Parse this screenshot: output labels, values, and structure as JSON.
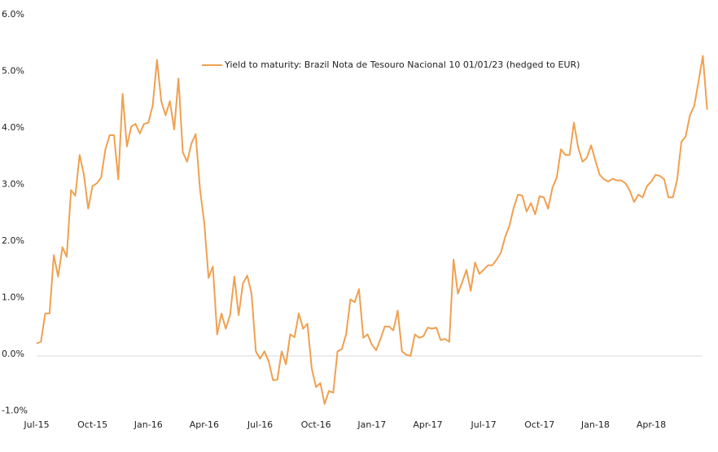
{
  "chart_data": {
    "type": "line",
    "categories": [
      "Jul-15",
      null,
      null,
      null,
      null,
      null,
      null,
      null,
      null,
      null,
      null,
      null,
      null,
      "Oct-15",
      null,
      null,
      null,
      null,
      null,
      null,
      null,
      null,
      null,
      null,
      null,
      null,
      "Jan-16",
      null,
      null,
      null,
      null,
      null,
      null,
      null,
      null,
      null,
      null,
      null,
      null,
      "Apr-16",
      null,
      null,
      null,
      null,
      null,
      null,
      null,
      null,
      null,
      null,
      null,
      null,
      "Jul-16",
      null,
      null,
      null,
      null,
      null,
      null,
      null,
      null,
      null,
      null,
      null,
      null,
      "Oct-16",
      null,
      null,
      null,
      null,
      null,
      null,
      null,
      null,
      null,
      null,
      null,
      null,
      "Jan-17",
      null,
      null,
      null,
      null,
      null,
      null,
      null,
      null,
      null,
      null,
      null,
      null,
      "Apr-17",
      null,
      null,
      null,
      null,
      null,
      null,
      null,
      null,
      null,
      null,
      null,
      null,
      "Jul-17",
      null,
      null,
      null,
      null,
      null,
      null,
      null,
      null,
      null,
      null,
      null,
      null,
      "Oct-17",
      null,
      null,
      null,
      null,
      null,
      null,
      null,
      null,
      null,
      null,
      null,
      null,
      "Jan-18",
      null,
      null,
      null,
      null,
      null,
      null,
      null,
      null,
      null,
      null,
      null,
      null,
      "Apr-18",
      null,
      null,
      null,
      null,
      null,
      null,
      null,
      null,
      null,
      null,
      null,
      null,
      null
    ],
    "series": [
      {
        "name": "Yield to maturity: Brazil Nota de Tesouro Nacional 10 01/01/23 (hedged to EUR)",
        "color": "#f0a050",
        "values": [
          0.22,
          0.25,
          0.75,
          0.75,
          1.78,
          1.4,
          1.92,
          1.75,
          2.93,
          2.83,
          3.55,
          3.2,
          2.6,
          3.0,
          3.05,
          3.15,
          3.65,
          3.9,
          3.9,
          3.12,
          4.63,
          3.7,
          4.05,
          4.1,
          3.93,
          4.1,
          4.12,
          4.42,
          5.23,
          4.5,
          4.25,
          4.5,
          4.0,
          4.9,
          3.6,
          3.43,
          3.75,
          3.92,
          2.95,
          2.35,
          1.38,
          1.58,
          0.38,
          0.75,
          0.48,
          0.72,
          1.4,
          0.72,
          1.28,
          1.42,
          1.1,
          0.08,
          -0.05,
          0.08,
          -0.1,
          -0.43,
          -0.42,
          0.08,
          -0.15,
          0.38,
          0.33,
          0.75,
          0.48,
          0.57,
          -0.22,
          -0.55,
          -0.48,
          -0.85,
          -0.62,
          -0.65,
          0.08,
          0.12,
          0.38,
          1.0,
          0.95,
          1.18,
          0.32,
          0.38,
          0.2,
          0.1,
          0.3,
          0.52,
          0.52,
          0.45,
          0.8,
          0.08,
          0.02,
          0.0,
          0.38,
          0.32,
          0.35,
          0.5,
          0.48,
          0.5,
          0.28,
          0.3,
          0.25,
          1.7,
          1.1,
          1.3,
          1.52,
          1.15,
          1.65,
          1.45,
          1.52,
          1.6,
          1.6,
          1.7,
          1.82,
          2.1,
          2.3,
          2.62,
          2.85,
          2.83,
          2.55,
          2.7,
          2.5,
          2.82,
          2.8,
          2.6,
          2.97,
          3.15,
          3.65,
          3.55,
          3.55,
          4.12,
          3.68,
          3.43,
          3.5,
          3.72,
          3.45,
          3.2,
          3.12,
          3.08,
          3.13,
          3.1,
          3.1,
          3.05,
          2.92,
          2.72,
          2.85,
          2.8,
          3.0,
          3.08,
          3.2,
          3.18,
          3.12,
          2.8,
          2.8,
          3.1,
          3.78,
          3.88,
          4.25,
          4.42,
          4.85,
          5.3,
          4.35
        ]
      }
    ],
    "ylim": [
      -1,
      6
    ],
    "yticks": [
      {
        "value": -1,
        "label": "-1.0%"
      },
      {
        "value": 0,
        "label": "0.0%"
      },
      {
        "value": 1,
        "label": "1.0%"
      },
      {
        "value": 2,
        "label": "2.0%"
      },
      {
        "value": 3,
        "label": "3.0%"
      },
      {
        "value": 4,
        "label": "4.0%"
      },
      {
        "value": 5,
        "label": "5.0%"
      },
      {
        "value": 6,
        "label": "6.0%"
      }
    ],
    "grid": false,
    "legend": "top-right"
  }
}
